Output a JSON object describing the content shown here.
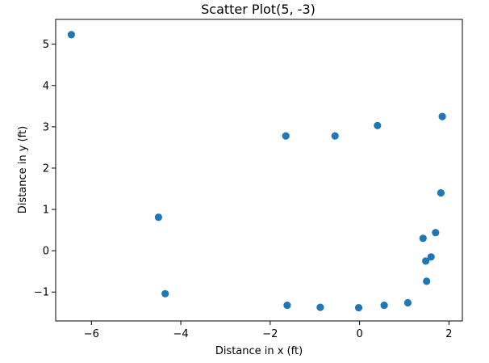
{
  "chart_data": {
    "type": "scatter",
    "title": "Scatter Plot(5, -3)",
    "xlabel": "Distance in x (ft)",
    "ylabel": "Distance in y (ft)",
    "xlim": [
      -6.8,
      2.3
    ],
    "ylim": [
      -1.7,
      5.6
    ],
    "xticks": [
      -6,
      -4,
      -2,
      0,
      2
    ],
    "yticks": [
      -1,
      0,
      1,
      2,
      3,
      4,
      5
    ],
    "xtick_labels": [
      "−6",
      "−4",
      "−2",
      "0",
      "2"
    ],
    "ytick_labels": [
      "−1",
      "0",
      "1",
      "2",
      "3",
      "4",
      "5"
    ],
    "grid": false,
    "marker_color": "#1f77b4",
    "points": [
      {
        "x": -6.45,
        "y": 5.23
      },
      {
        "x": -4.5,
        "y": 0.81
      },
      {
        "x": -4.35,
        "y": -1.04
      },
      {
        "x": -1.65,
        "y": 2.78
      },
      {
        "x": -1.62,
        "y": -1.32
      },
      {
        "x": -0.88,
        "y": -1.37
      },
      {
        "x": -0.55,
        "y": 2.78
      },
      {
        "x": -0.02,
        "y": -1.38
      },
      {
        "x": 0.4,
        "y": 3.03
      },
      {
        "x": 0.55,
        "y": -1.32
      },
      {
        "x": 1.08,
        "y": -1.26
      },
      {
        "x": 1.42,
        "y": 0.3
      },
      {
        "x": 1.48,
        "y": -0.25
      },
      {
        "x": 1.5,
        "y": -0.74
      },
      {
        "x": 1.6,
        "y": -0.15
      },
      {
        "x": 1.7,
        "y": 0.44
      },
      {
        "x": 1.82,
        "y": 1.4
      },
      {
        "x": 1.85,
        "y": 3.25
      }
    ]
  }
}
